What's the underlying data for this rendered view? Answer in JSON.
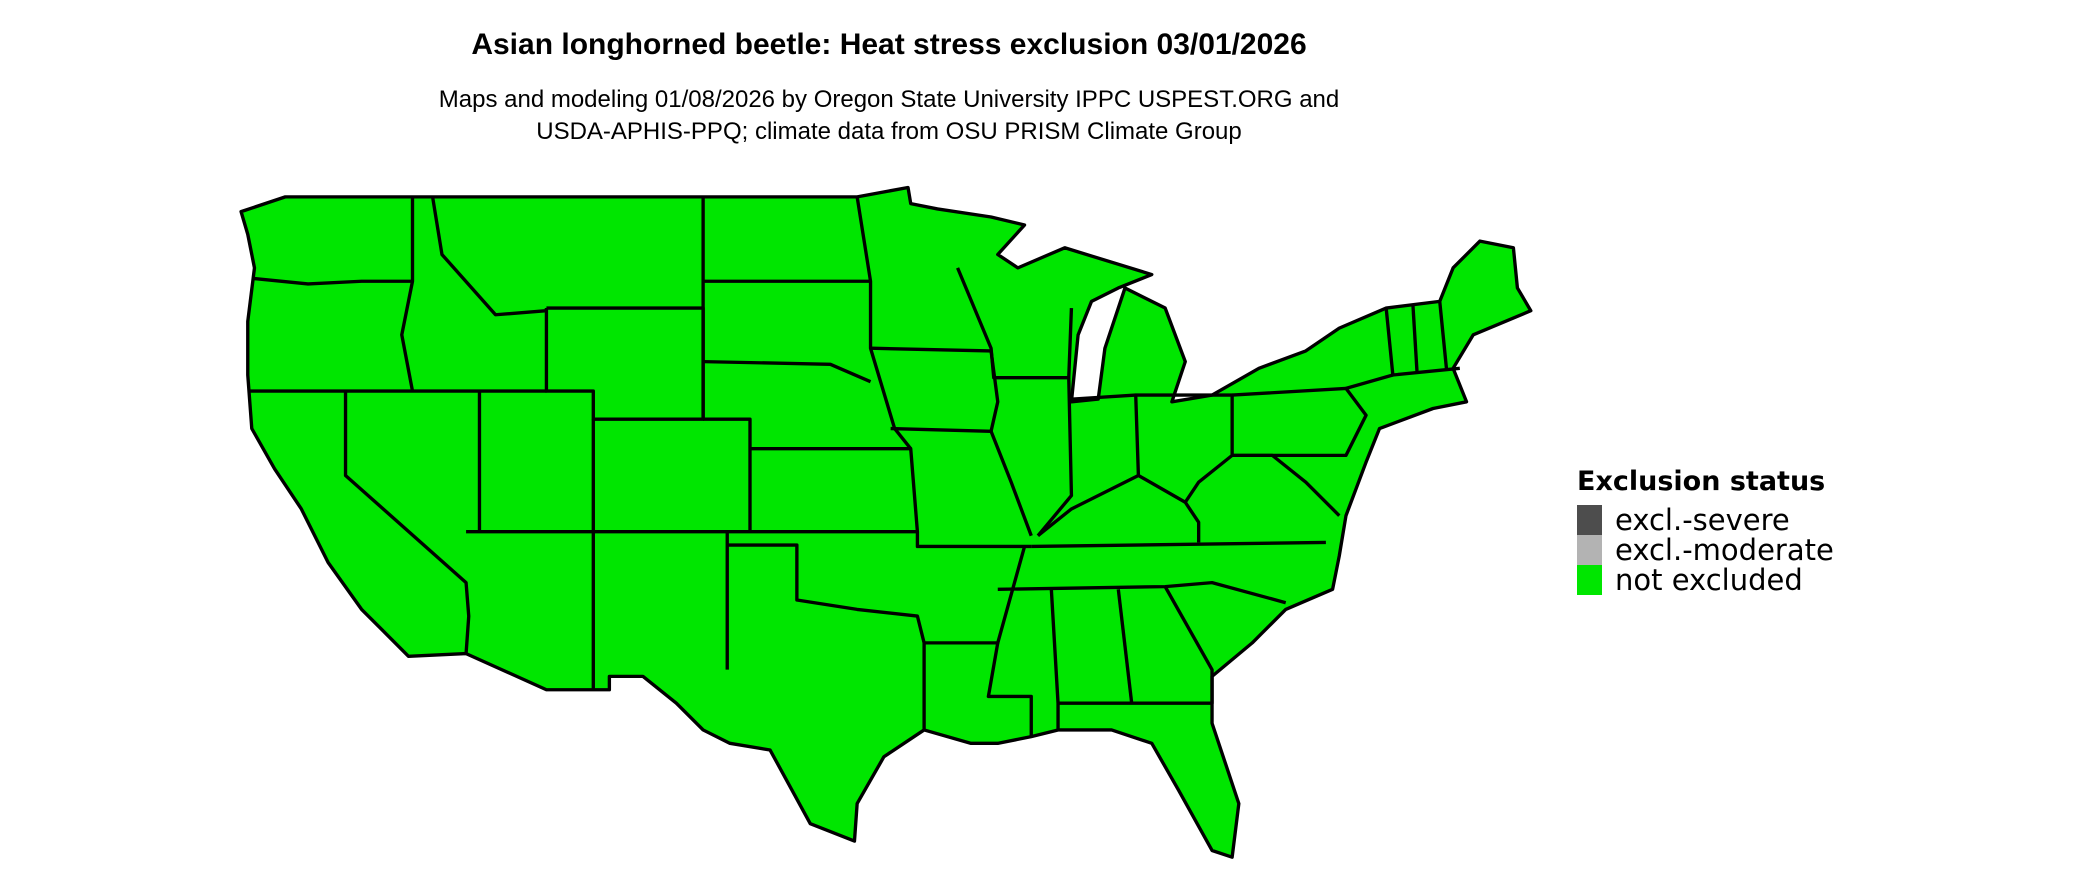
{
  "title": "Asian longhorned beetle: Heat stress exclusion 03/01/2026",
  "subtitle_line1": "Maps and modeling 01/08/2026 by Oregon State University IPPC USPEST.ORG and",
  "subtitle_line2": "USDA-APHIS-PPQ; climate data from OSU PRISM Climate Group",
  "map": {
    "region": "conterminous United States",
    "fill_status": "not excluded",
    "fill_color": "#00e600",
    "border_color": "#000000"
  },
  "legend": {
    "title": "Exclusion status",
    "items": [
      {
        "label": "excl.-severe",
        "color": "#4d4d4d"
      },
      {
        "label": "excl.-moderate",
        "color": "#b3b3b3"
      },
      {
        "label": "not excluded",
        "color": "#00e600"
      }
    ]
  }
}
